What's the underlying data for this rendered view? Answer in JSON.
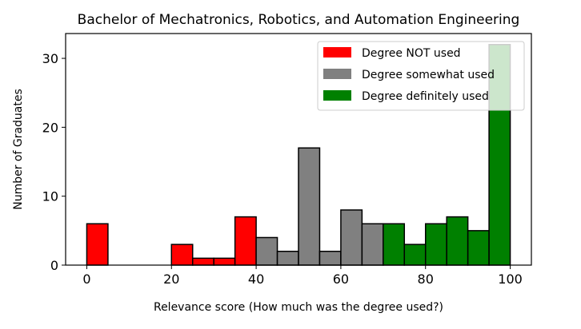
{
  "chart_data": {
    "type": "bar",
    "title": "Bachelor of Mechatronics, Robotics, and Automation Engineering",
    "xlabel": "Relevance score (How much was the degree used?)",
    "ylabel": "Number of Graduates",
    "xlim": [
      -5,
      105
    ],
    "ylim": [
      0,
      33.6
    ],
    "xticks": [
      0,
      20,
      40,
      60,
      80,
      100
    ],
    "yticks": [
      0,
      10,
      20,
      30
    ],
    "bin_width": 5,
    "grid": false,
    "legend_position": "top-right",
    "series": [
      {
        "name": "Degree NOT used",
        "color": "#ff0000",
        "bins": [
          0,
          5,
          10,
          15,
          20,
          25,
          30,
          35
        ],
        "values": [
          6,
          0,
          0,
          0,
          3,
          1,
          1,
          7
        ]
      },
      {
        "name": "Degree somewhat used",
        "color": "#808080",
        "bins": [
          40,
          45,
          50,
          55,
          60,
          65
        ],
        "values": [
          4,
          2,
          17,
          2,
          8,
          6
        ]
      },
      {
        "name": "Degree definitely used",
        "color": "#008000",
        "bins": [
          70,
          75,
          80,
          85,
          90,
          95
        ],
        "values": [
          6,
          3,
          6,
          7,
          5,
          32
        ]
      }
    ]
  }
}
